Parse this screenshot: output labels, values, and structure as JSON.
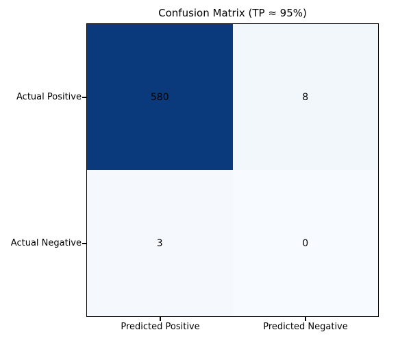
{
  "figure": {
    "background": "#ffffff",
    "axes_border_color": "#000000",
    "text_color": "#000000"
  },
  "chart_data": {
    "type": "heatmap",
    "title": "Confusion Matrix (TP ≈ 95%)",
    "x_categories": [
      "Predicted Positive",
      "Predicted Negative"
    ],
    "y_categories": [
      "Actual Positive",
      "Actual Negative"
    ],
    "values": [
      [
        580,
        8
      ],
      [
        3,
        0
      ]
    ],
    "colormap": "Blues",
    "cell_colors": [
      [
        "#0b3a7c",
        "#f2f7fb"
      ],
      [
        "#f5f9fd",
        "#f7fbff"
      ]
    ],
    "value_text_color": "#000000",
    "grid": false,
    "legend": false,
    "colorbar": false
  }
}
